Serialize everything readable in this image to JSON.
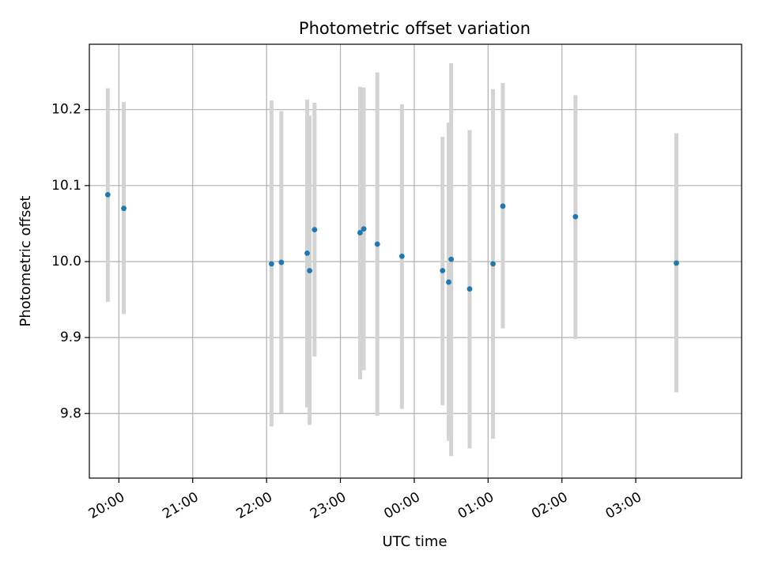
{
  "chart_data": {
    "type": "scatter",
    "title": "Photometric offset variation",
    "xlabel": "UTC time",
    "ylabel": "Photometric offset",
    "x_axis_kind": "time",
    "xlim": [
      "19:36",
      "28:26"
    ],
    "ylim": [
      9.715,
      10.286
    ],
    "x_ticks": [
      {
        "label": "20:00",
        "value": "20:00"
      },
      {
        "label": "21:00",
        "value": "21:00"
      },
      {
        "label": "22:00",
        "value": "22:00"
      },
      {
        "label": "23:00",
        "value": "23:00"
      },
      {
        "label": "00:00",
        "value": "24:00"
      },
      {
        "label": "01:00",
        "value": "25:00"
      },
      {
        "label": "02:00",
        "value": "26:00"
      },
      {
        "label": "03:00",
        "value": "27:00"
      }
    ],
    "y_ticks": [
      {
        "label": "9.8",
        "value": 9.8
      },
      {
        "label": "9.9",
        "value": 9.9
      },
      {
        "label": "10.0",
        "value": 10.0
      },
      {
        "label": "10.1",
        "value": 10.1
      },
      {
        "label": "10.2",
        "value": 10.2
      }
    ],
    "grid": true,
    "colors": {
      "point": "#1f77b4",
      "errorbar": "#d3d3d3",
      "grid": "#b0b0b0",
      "axes": "#000000"
    },
    "points": [
      {
        "x": "19:51",
        "y": 10.088,
        "ylow": 9.947,
        "yhigh": 10.228
      },
      {
        "x": "20:04",
        "y": 10.07,
        "ylow": 9.931,
        "yhigh": 10.21
      },
      {
        "x": "22:04",
        "y": 9.997,
        "ylow": 9.783,
        "yhigh": 10.212
      },
      {
        "x": "22:12",
        "y": 9.999,
        "ylow": 9.801,
        "yhigh": 10.198
      },
      {
        "x": "22:33",
        "y": 10.011,
        "ylow": 9.808,
        "yhigh": 10.213
      },
      {
        "x": "22:35",
        "y": 9.988,
        "ylow": 9.785,
        "yhigh": 10.192
      },
      {
        "x": "22:39",
        "y": 10.042,
        "ylow": 9.875,
        "yhigh": 10.209
      },
      {
        "x": "23:16",
        "y": 10.038,
        "ylow": 9.845,
        "yhigh": 10.23
      },
      {
        "x": "23:19",
        "y": 10.043,
        "ylow": 9.857,
        "yhigh": 10.229
      },
      {
        "x": "23:30",
        "y": 10.023,
        "ylow": 9.797,
        "yhigh": 10.249
      },
      {
        "x": "23:50",
        "y": 10.007,
        "ylow": 9.806,
        "yhigh": 10.207
      },
      {
        "x": "24:23",
        "y": 9.988,
        "ylow": 9.811,
        "yhigh": 10.164
      },
      {
        "x": "24:28",
        "y": 9.973,
        "ylow": 9.764,
        "yhigh": 10.183
      },
      {
        "x": "24:30",
        "y": 10.003,
        "ylow": 9.744,
        "yhigh": 10.261
      },
      {
        "x": "24:45",
        "y": 9.964,
        "ylow": 9.754,
        "yhigh": 10.173
      },
      {
        "x": "25:04",
        "y": 9.997,
        "ylow": 9.767,
        "yhigh": 10.227
      },
      {
        "x": "25:12",
        "y": 10.073,
        "ylow": 9.912,
        "yhigh": 10.235
      },
      {
        "x": "26:11",
        "y": 10.059,
        "ylow": 9.898,
        "yhigh": 10.219
      },
      {
        "x": "27:33",
        "y": 9.998,
        "ylow": 9.828,
        "yhigh": 10.169
      }
    ]
  }
}
